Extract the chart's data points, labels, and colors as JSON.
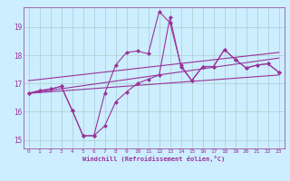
{
  "bg_color": "#cceeff",
  "grid_color": "#aacccc",
  "line_color": "#993399",
  "xlim": [
    -0.5,
    23.5
  ],
  "ylim": [
    14.7,
    19.7
  ],
  "xticks": [
    0,
    1,
    2,
    3,
    4,
    5,
    6,
    7,
    8,
    9,
    10,
    11,
    12,
    13,
    14,
    15,
    16,
    17,
    18,
    19,
    20,
    21,
    22,
    23
  ],
  "yticks": [
    15,
    16,
    17,
    18,
    19
  ],
  "xlabel": "Windchill (Refroidissement éolien,°C)",
  "line1_x": [
    0,
    1,
    2,
    3,
    4,
    5,
    6,
    7,
    8,
    9,
    10,
    11,
    12,
    13,
    14,
    15,
    16,
    17,
    18,
    19,
    20,
    21,
    22,
    23
  ],
  "line1_y": [
    16.65,
    16.75,
    16.8,
    16.9,
    16.05,
    15.15,
    15.15,
    15.5,
    16.35,
    16.7,
    17.0,
    17.15,
    17.3,
    19.35,
    17.6,
    17.1,
    17.6,
    17.6,
    18.2,
    17.85,
    17.55,
    17.65,
    17.7,
    17.4
  ],
  "line2_x": [
    0,
    1,
    2,
    3,
    4,
    5,
    6,
    7,
    8,
    9,
    10,
    11,
    12,
    13,
    14,
    15,
    16,
    17,
    18,
    19,
    20,
    21,
    22,
    23
  ],
  "line2_y": [
    16.65,
    16.75,
    16.8,
    16.9,
    16.05,
    15.15,
    15.15,
    16.65,
    17.65,
    18.1,
    18.15,
    18.05,
    19.55,
    19.15,
    17.65,
    17.1,
    17.6,
    17.6,
    18.2,
    17.85,
    17.55,
    17.65,
    17.7,
    17.4
  ],
  "line3_x": [
    0,
    23
  ],
  "line3_y": [
    16.65,
    17.9
  ],
  "line4_x": [
    0,
    23
  ],
  "line4_y": [
    16.65,
    17.3
  ],
  "line5_x": [
    0,
    23
  ],
  "line5_y": [
    17.1,
    18.1
  ]
}
